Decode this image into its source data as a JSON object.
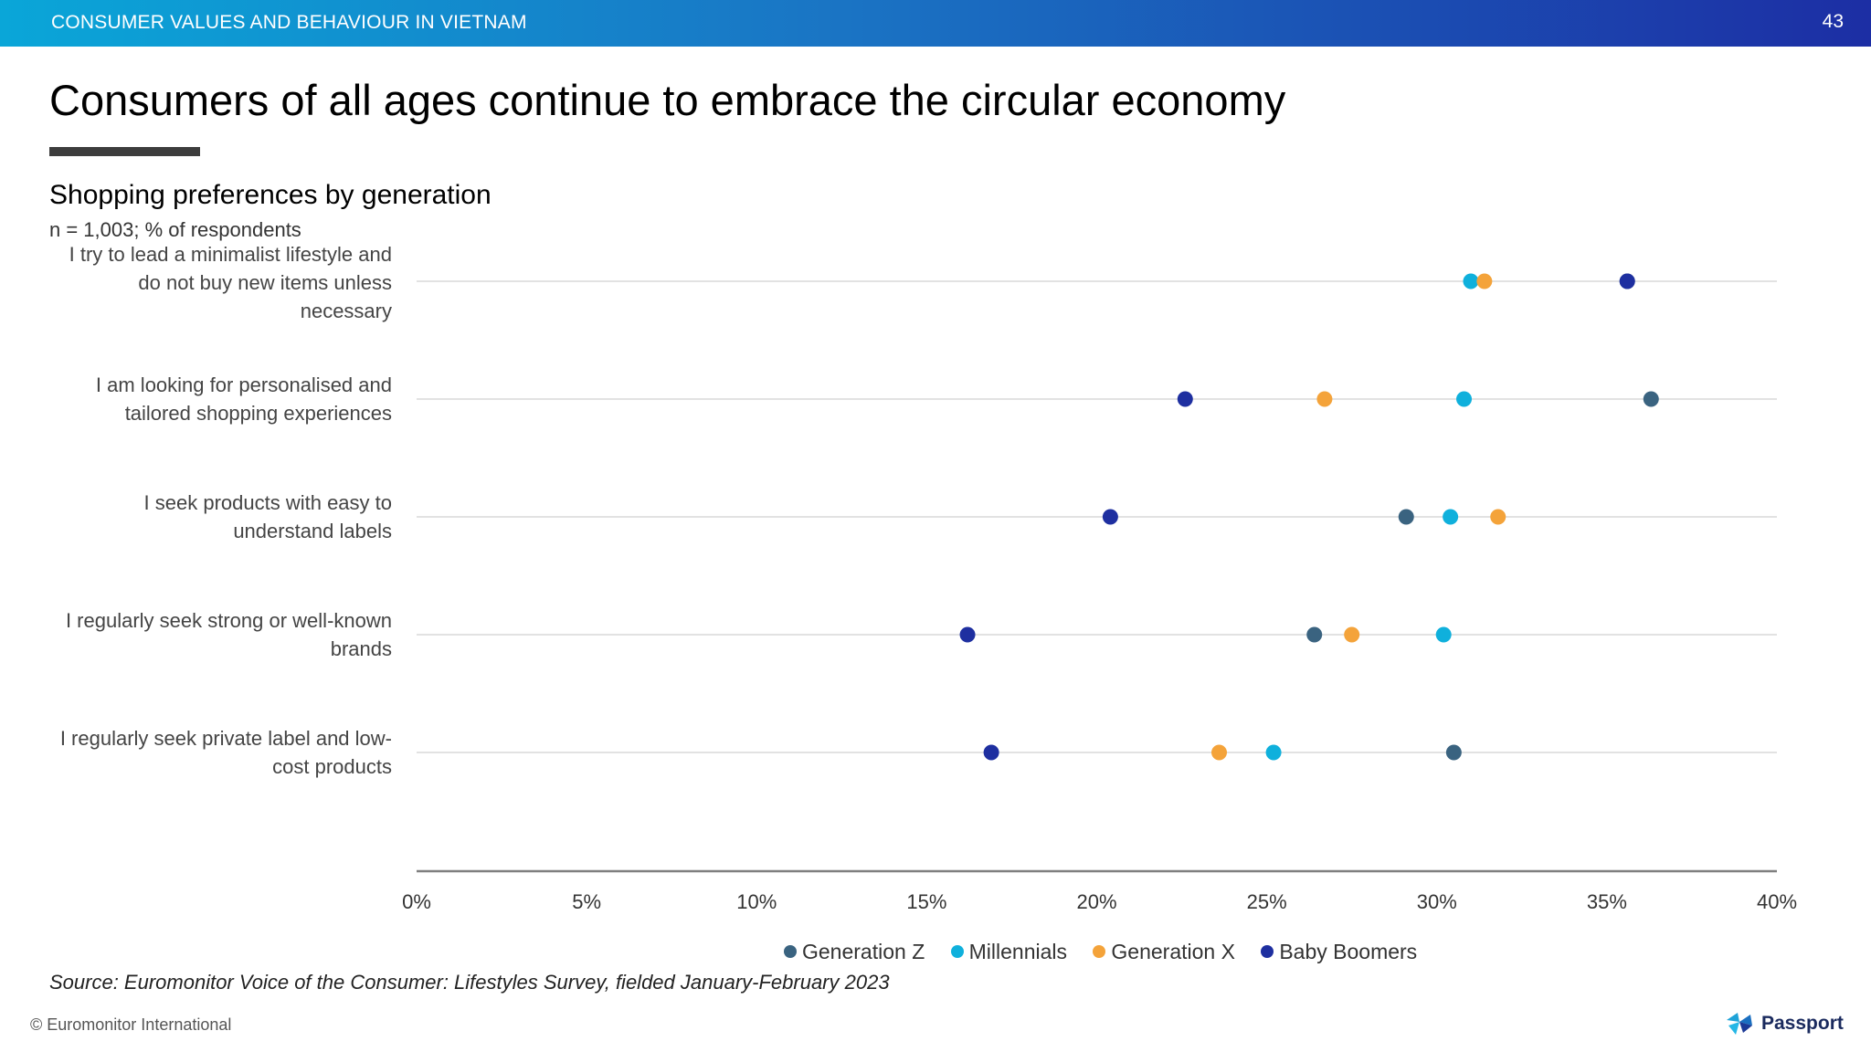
{
  "header": {
    "section": "CONSUMER VALUES AND BEHAVIOUR IN VIETNAM",
    "page_number": "43"
  },
  "title": "Consumers of all ages continue to embrace the circular economy",
  "chart_title": "Shopping preferences by generation",
  "base_note": "n = 1,003; % of respondents",
  "source": "Source: Euromonitor Voice of the Consumer: Lifestyles Survey, fielded January-February 2023",
  "copyright": "© Euromonitor International",
  "brand": "Passport",
  "chart_data": {
    "type": "scatter",
    "title": "Shopping preferences by generation",
    "xlabel": "",
    "ylabel": "",
    "xlim": [
      0,
      40
    ],
    "x_ticks": [
      "0%",
      "5%",
      "10%",
      "15%",
      "20%",
      "25%",
      "30%",
      "35%",
      "40%"
    ],
    "categories": [
      "I try to lead a minimalist lifestyle and do not buy new items unless necessary",
      "I am looking for personalised and tailored shopping experiences",
      "I seek products with easy to understand labels",
      "I regularly seek strong or well-known brands",
      "I regularly seek private label and low-cost products"
    ],
    "series": [
      {
        "name": "Generation Z",
        "color": "#3a6380",
        "values": [
          35.6,
          36.3,
          29.1,
          26.4,
          30.5
        ]
      },
      {
        "name": "Millennials",
        "color": "#0fb0dc",
        "values": [
          31.0,
          30.8,
          30.4,
          30.2,
          25.2
        ]
      },
      {
        "name": "Generation X",
        "color": "#f4a33a",
        "values": [
          31.4,
          26.7,
          31.8,
          27.5,
          23.6
        ]
      },
      {
        "name": "Baby Boomers",
        "color": "#1e2fa0",
        "values": [
          35.6,
          22.6,
          20.4,
          16.2,
          16.9
        ]
      }
    ],
    "legend_position": "bottom",
    "grid": true
  }
}
